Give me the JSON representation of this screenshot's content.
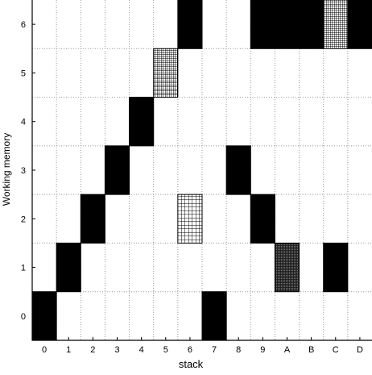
{
  "chart_data": {
    "type": "heatmap",
    "xlabel": "stack",
    "ylabel": "Working memory",
    "x_categories": [
      "0",
      "1",
      "2",
      "3",
      "4",
      "5",
      "6",
      "7",
      "8",
      "9",
      "A",
      "B",
      "C",
      "D"
    ],
    "y_categories": [
      "0",
      "1",
      "2",
      "3",
      "4",
      "5",
      "6"
    ],
    "grid": true,
    "grid_style": "dotted",
    "colors": {
      "solid": "#000000",
      "background": "#ffffff",
      "grid": "#999999"
    },
    "fill_legend": {
      "solid": "solid black",
      "dense": "dense fine crosshatch",
      "medium": "medium crosshatch",
      "grid": "coarse grid"
    },
    "cells": [
      {
        "x": "0",
        "y": "0",
        "fill": "solid"
      },
      {
        "x": "1",
        "y": "1",
        "fill": "solid"
      },
      {
        "x": "2",
        "y": "2",
        "fill": "solid"
      },
      {
        "x": "3",
        "y": "3",
        "fill": "solid"
      },
      {
        "x": "4",
        "y": "4",
        "fill": "solid"
      },
      {
        "x": "5",
        "y": "5",
        "fill": "medium"
      },
      {
        "x": "6",
        "y": "6",
        "fill": "solid"
      },
      {
        "x": "6",
        "y": "2",
        "fill": "grid"
      },
      {
        "x": "7",
        "y": "0",
        "fill": "solid"
      },
      {
        "x": "8",
        "y": "3",
        "fill": "solid"
      },
      {
        "x": "9",
        "y": "2",
        "fill": "solid"
      },
      {
        "x": "9",
        "y": "6",
        "fill": "solid"
      },
      {
        "x": "A",
        "y": "6",
        "fill": "solid"
      },
      {
        "x": "A",
        "y": "1",
        "fill": "dense"
      },
      {
        "x": "B",
        "y": "6",
        "fill": "solid"
      },
      {
        "x": "C",
        "y": "6",
        "fill": "medium"
      },
      {
        "x": "C",
        "y": "1",
        "fill": "solid"
      },
      {
        "x": "D",
        "y": "6",
        "fill": "solid"
      }
    ]
  }
}
